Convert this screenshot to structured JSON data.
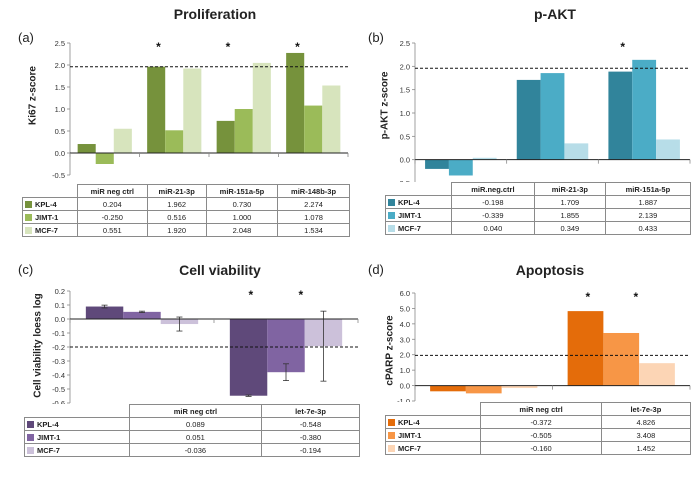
{
  "chart_data": [
    {
      "type": "bar",
      "label": "(a)",
      "title": "Proliferation",
      "ylabel": "Ki67 z-score",
      "ylim": [
        -0.5,
        2.5
      ],
      "yticks": [
        "-0.5",
        "0.0",
        "0.5",
        "1.0",
        "1.5",
        "2.0",
        "2.5"
      ],
      "threshold": 1.96,
      "categories": [
        "miR neg ctrl",
        "miR-21-3p",
        "miR-151a-5p",
        "miR-148b-3p"
      ],
      "stars": [
        "",
        "*",
        "*",
        "*"
      ],
      "series": [
        {
          "name": "KPL-4",
          "color": "#76923c",
          "values": [
            0.204,
            1.962,
            0.73,
            2.274
          ],
          "labels": [
            "0.204",
            "1.962",
            "0.730",
            "2.274"
          ]
        },
        {
          "name": "JIMT-1",
          "color": "#9bbb59",
          "values": [
            -0.25,
            0.516,
            1.0,
            1.078
          ],
          "labels": [
            "-0.250",
            "0.516",
            "1.000",
            "1.078"
          ]
        },
        {
          "name": "MCF-7",
          "color": "#d7e4bd",
          "values": [
            0.551,
            1.92,
            2.048,
            1.534
          ],
          "labels": [
            "0.551",
            "1.920",
            "2.048",
            "1.534"
          ]
        }
      ]
    },
    {
      "type": "bar",
      "label": "(b)",
      "title": "p-AKT",
      "ylabel": "p-AKT z-score",
      "ylim": [
        -0.5,
        2.5
      ],
      "yticks": [
        "-0.5",
        "0.0",
        "0.5",
        "1.0",
        "1.5",
        "2.0",
        "2.5"
      ],
      "threshold": 1.96,
      "categories": [
        "miR.neg.ctrl",
        "miR-21-3p",
        "miR-151a-5p"
      ],
      "stars": [
        "",
        "",
        "*"
      ],
      "series": [
        {
          "name": "KPL-4",
          "color": "#31849b",
          "values": [
            -0.198,
            1.709,
            1.887
          ],
          "labels": [
            "-0.198",
            "1.709",
            "1.887"
          ]
        },
        {
          "name": "JIMT-1",
          "color": "#4bacc6",
          "values": [
            -0.339,
            1.855,
            2.139
          ],
          "labels": [
            "-0.339",
            "1.855",
            "2.139"
          ]
        },
        {
          "name": "MCF-7",
          "color": "#b7dde8",
          "values": [
            0.04,
            0.349,
            0.433
          ],
          "labels": [
            "0.040",
            "0.349",
            "0.433"
          ]
        }
      ]
    },
    {
      "type": "bar",
      "label": "(c)",
      "title": "Cell viability",
      "ylabel": "Cell viability loess log",
      "ylim": [
        -0.6,
        0.2
      ],
      "yticks": [
        "-0.6",
        "-0.5",
        "-0.4",
        "-0.3",
        "-0.2",
        "-0.1",
        "0.0",
        "0.1",
        "0.2"
      ],
      "threshold": -0.2,
      "categories": [
        "miR neg ctrl",
        "let-7e-3p"
      ],
      "stars": [
        "",
        "* *"
      ],
      "series": [
        {
          "name": "KPL-4",
          "color": "#5f497a",
          "values": [
            0.089,
            -0.548
          ],
          "labels": [
            "0.089",
            "-0.548"
          ],
          "err": [
            0.01,
            0.005
          ]
        },
        {
          "name": "JIMT-1",
          "color": "#8064a2",
          "values": [
            0.051,
            -0.38
          ],
          "labels": [
            "0.051",
            "-0.380"
          ],
          "err": [
            0.005,
            0.06
          ]
        },
        {
          "name": "MCF-7",
          "color": "#ccc1da",
          "values": [
            -0.036,
            -0.194
          ],
          "labels": [
            "-0.036",
            "-0.194"
          ],
          "err": [
            0.05,
            0.25
          ]
        }
      ]
    },
    {
      "type": "bar",
      "label": "(d)",
      "title": "Apoptosis",
      "ylabel": "cPARP z-score",
      "ylim": [
        -1.0,
        6.0
      ],
      "yticks": [
        "-1.0",
        "0.0",
        "1.0",
        "2.0",
        "3.0",
        "4.0",
        "5.0",
        "6.0"
      ],
      "threshold": 1.96,
      "categories": [
        "miR neg ctrl",
        "let-7e-3p"
      ],
      "stars": [
        "",
        "* *"
      ],
      "series": [
        {
          "name": "KPL-4",
          "color": "#e46c0a",
          "values": [
            -0.372,
            4.826
          ],
          "labels": [
            "-0.372",
            "4.826"
          ]
        },
        {
          "name": "JIMT-1",
          "color": "#f79646",
          "values": [
            -0.505,
            3.408
          ],
          "labels": [
            "-0.505",
            "3.408"
          ]
        },
        {
          "name": "MCF-7",
          "color": "#fcd5b5",
          "values": [
            -0.16,
            1.452
          ],
          "labels": [
            "-0.160",
            "1.452"
          ]
        }
      ]
    }
  ]
}
